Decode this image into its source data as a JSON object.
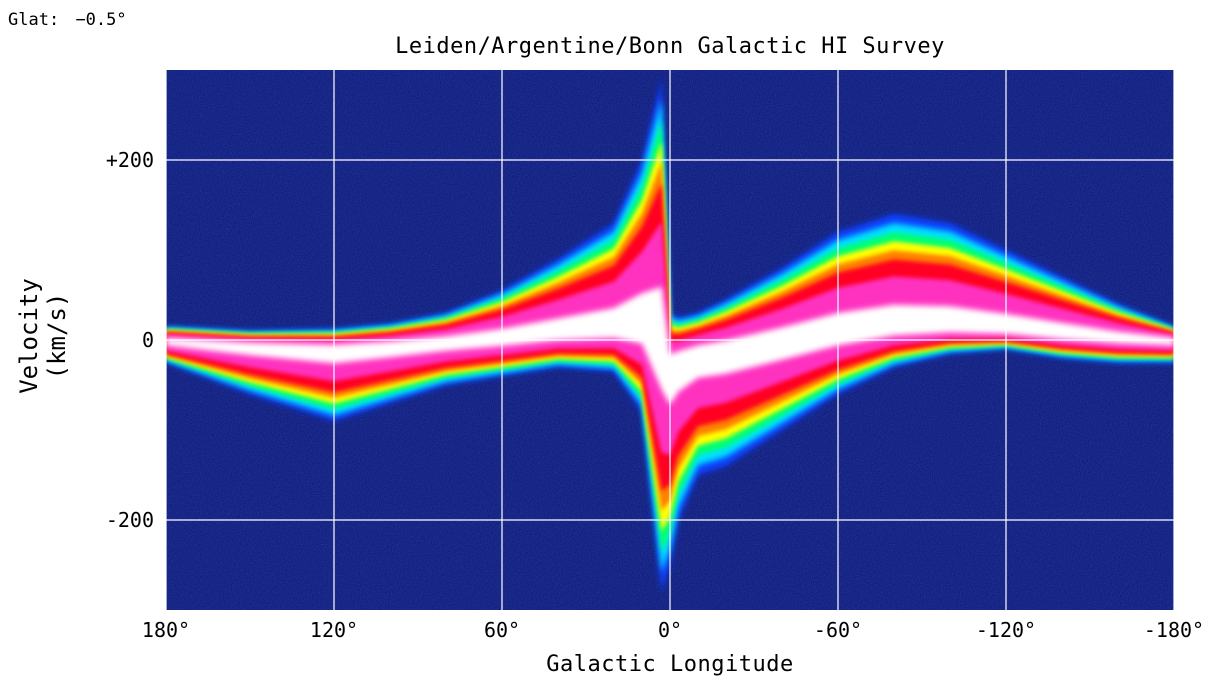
{
  "header": {
    "glat_label": "Glat:",
    "glat_value": "−0.5°"
  },
  "chart_data": {
    "type": "heatmap",
    "title": "Leiden/Argentine/Bonn Galactic HI Survey",
    "xlabel": "Galactic Longitude",
    "ylabel": "Velocity (km/s)",
    "xlim": [
      180,
      -180
    ],
    "ylim": [
      -300,
      300
    ],
    "x_ticks": [
      {
        "value": 180,
        "label": "180°"
      },
      {
        "value": 120,
        "label": "120°"
      },
      {
        "value": 60,
        "label": "60°"
      },
      {
        "value": 0,
        "label": "0°"
      },
      {
        "value": -60,
        "label": "-60°"
      },
      {
        "value": -120,
        "label": "-120°"
      },
      {
        "value": -180,
        "label": "-180°"
      }
    ],
    "y_ticks": [
      {
        "value": 200,
        "label": "+200"
      },
      {
        "value": 0,
        "label": "0"
      },
      {
        "value": -200,
        "label": "-200"
      }
    ],
    "grid": true,
    "colormap": [
      "#0a1270",
      "#1040ff",
      "#00e0ff",
      "#00ff70",
      "#ffff00",
      "#ff8000",
      "#ff0020",
      "#ff30c0",
      "#ffffff"
    ],
    "envelope": {
      "description_units": "km/s",
      "longitude": [
        180,
        150,
        120,
        100,
        80,
        60,
        40,
        20,
        10,
        3,
        0,
        -3,
        -10,
        -20,
        -40,
        -60,
        -80,
        -100,
        -120,
        -140,
        -160,
        -180
      ],
      "upper_velocity": [
        15,
        10,
        12,
        18,
        30,
        55,
        90,
        130,
        200,
        290,
        30,
        25,
        30,
        45,
        80,
        120,
        140,
        130,
        100,
        70,
        40,
        15
      ],
      "lower_velocity": [
        -25,
        -60,
        -90,
        -70,
        -50,
        -40,
        -30,
        -35,
        -80,
        -280,
        -250,
        -200,
        -150,
        -140,
        -100,
        -60,
        -30,
        -15,
        -10,
        -20,
        -25,
        -25
      ]
    }
  }
}
